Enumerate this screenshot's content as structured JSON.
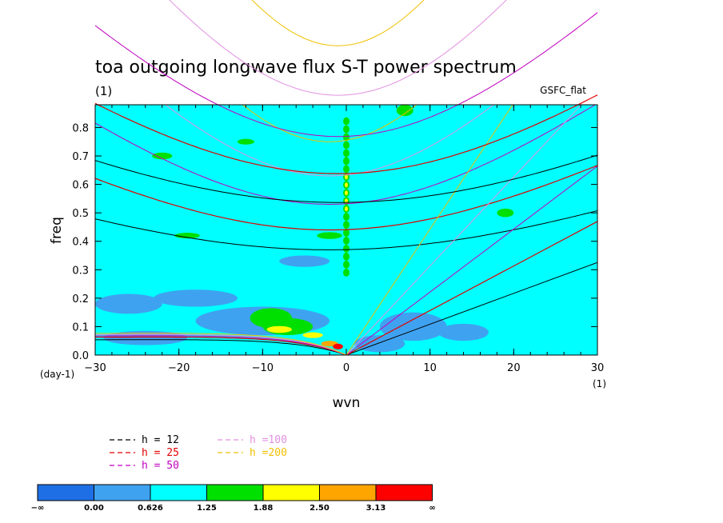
{
  "chart_data": {
    "type": "heatmap",
    "title": "toa outgoing longwave flux S-T power spectrum",
    "subtitle": "(1)",
    "model_label": "GSFC_flat",
    "xlabel": "wvn",
    "ylabel": "freq",
    "x_unit": "(1)",
    "y_unit": "(day-1)",
    "xlim": [
      -30,
      30
    ],
    "ylim": [
      0,
      0.88
    ],
    "xticks": [
      -30,
      -20,
      -10,
      0,
      10,
      20,
      30
    ],
    "xtick_labels": [
      "−30",
      "−20",
      "−10",
      "0",
      "10",
      "20",
      "30"
    ],
    "yticks": [
      0.0,
      0.1,
      0.2,
      0.3,
      0.4,
      0.5,
      0.6,
      0.7,
      0.8
    ],
    "ytick_labels": [
      "0.0",
      "0.1",
      "0.2",
      "0.3",
      "0.4",
      "0.5",
      "0.6",
      "0.7",
      "0.8"
    ],
    "background_level_color": "#00ffff",
    "contour_levels": {
      "colors": [
        "#1e6fe6",
        "#3fa2f0",
        "#00ffff",
        "#00e000",
        "#ffff00",
        "#ffa500",
        "#ff0000"
      ],
      "labels": [
        "−∞",
        "0.00",
        "0.626",
        "1.25",
        "1.88",
        "2.50",
        "3.13",
        "∞"
      ]
    },
    "dispersion_curves": [
      {
        "name": "h = 12",
        "color": "#000000",
        "kelvin_speed": 10.85,
        "ig_min_freq": 0.37,
        "mrg_freq_at_k_minus30": 0.06
      },
      {
        "name": "h = 25",
        "color": "#e00000",
        "kelvin_speed": 15.66,
        "ig_min_freq": 0.44,
        "mrg_freq_at_k_minus30": 0.07
      },
      {
        "name": "h = 50",
        "color": "#c000c0",
        "kelvin_speed": 22.15,
        "ig_min_freq": 0.53,
        "mrg_freq_at_k_minus30": 0.075
      },
      {
        "name": "h =100",
        "color": "#e090e0",
        "kelvin_speed": 31.32,
        "ig_min_freq": 0.63,
        "mrg_freq_at_k_minus30": 0.08
      },
      {
        "name": "h =200",
        "color": "#f0c000",
        "kelvin_speed": 44.29,
        "ig_min_freq": 0.75,
        "mrg_freq_at_k_minus30": 0.085
      }
    ],
    "legend_position": "bottom-left",
    "grid": false
  }
}
